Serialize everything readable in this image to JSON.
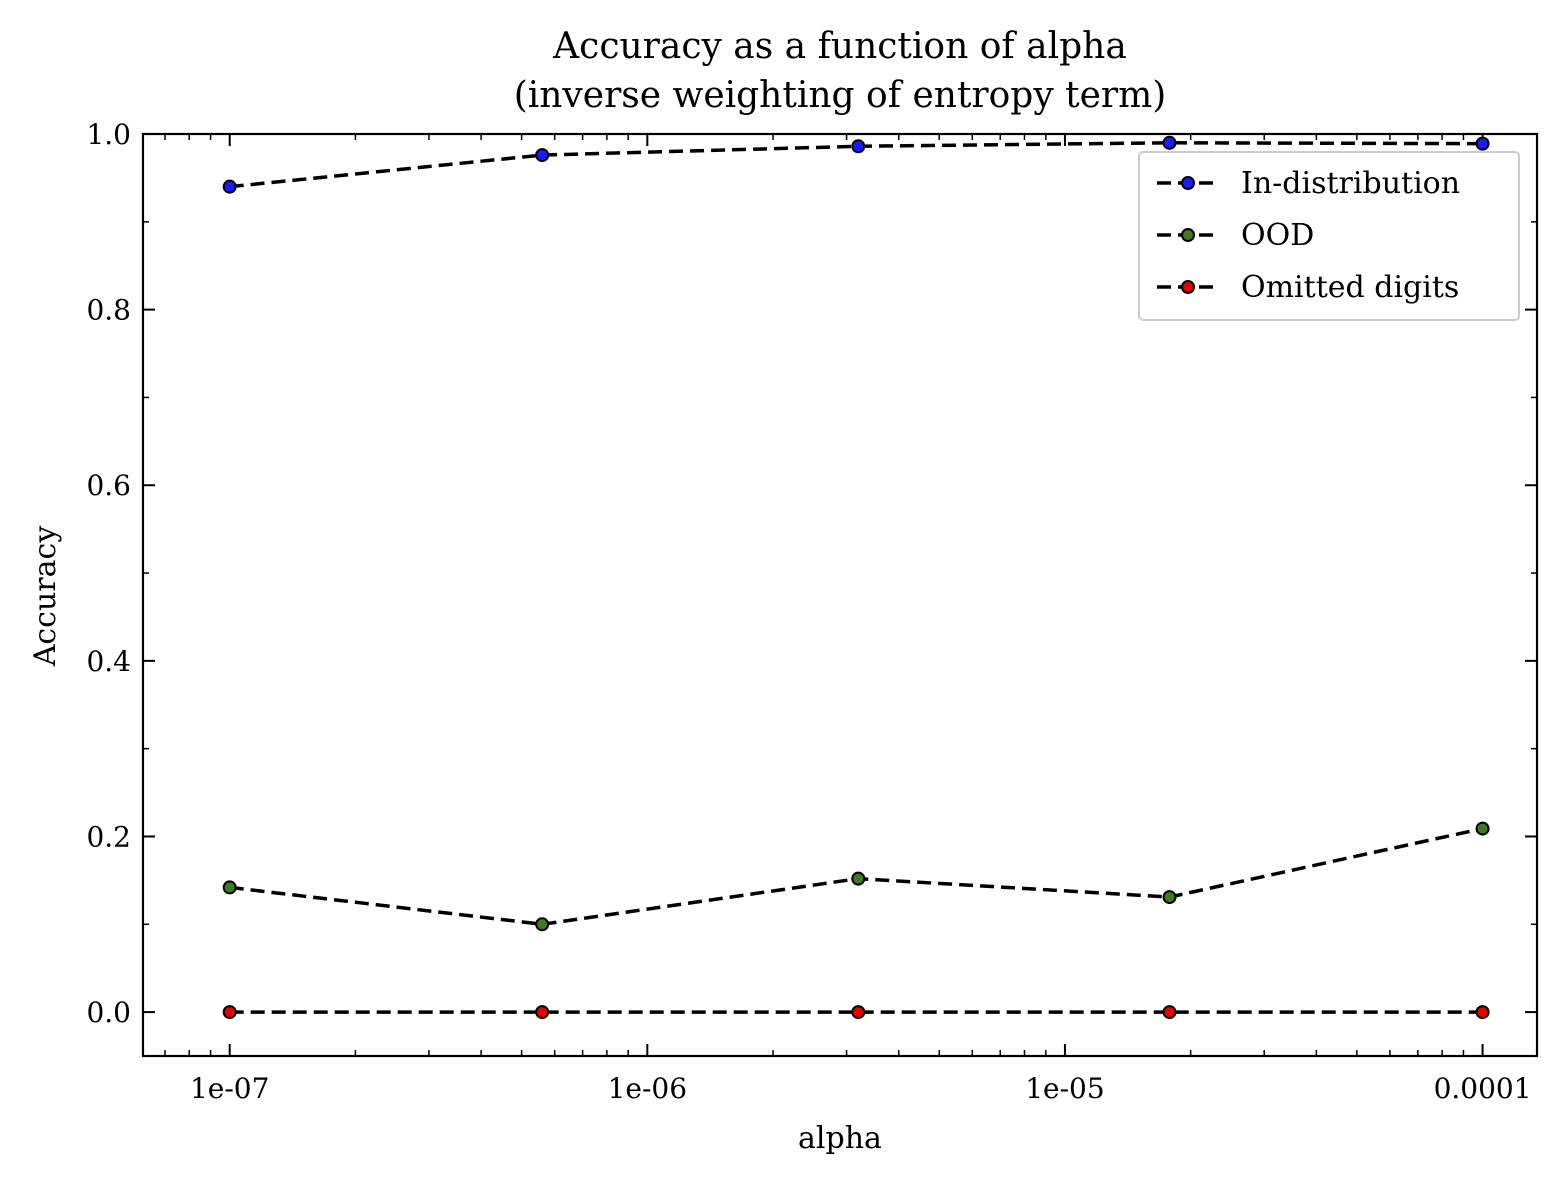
{
  "chart_data": {
    "type": "line",
    "title": [
      "Accuracy as a function of alpha",
      "(inverse weighting of entropy term)"
    ],
    "xlabel": "alpha",
    "ylabel": "Accuracy",
    "xscale": "log",
    "xlim": [
      6.2e-08,
      0.000135
    ],
    "ylim": [
      -0.05,
      1.0
    ],
    "xticks": [
      {
        "value": 1e-07,
        "label": "1e-07"
      },
      {
        "value": 1e-06,
        "label": "1e-06"
      },
      {
        "value": 1e-05,
        "label": "1e-05"
      },
      {
        "value": 0.0001,
        "label": "0.0001"
      }
    ],
    "yticks": [
      {
        "value": 0.0,
        "label": "0.0"
      },
      {
        "value": 0.2,
        "label": "0.2"
      },
      {
        "value": 0.4,
        "label": "0.4"
      },
      {
        "value": 0.6,
        "label": "0.6"
      },
      {
        "value": 0.8,
        "label": "0.8"
      },
      {
        "value": 1.0,
        "label": "1.0"
      }
    ],
    "x": [
      1e-07,
      5.6e-07,
      3.2e-06,
      1.78e-05,
      0.0001
    ],
    "series": [
      {
        "name": "In-distribution",
        "marker_color": "#1a1aff",
        "line_style": "dashed",
        "line_color": "#000000",
        "values": [
          0.94,
          0.976,
          0.986,
          0.99,
          0.989
        ]
      },
      {
        "name": "OOD",
        "marker_color": "#3d7a22",
        "line_style": "dashed",
        "line_color": "#000000",
        "values": [
          0.142,
          0.1,
          0.152,
          0.131,
          0.209
        ]
      },
      {
        "name": "Omitted digits",
        "marker_color": "#e60000",
        "line_style": "dashed",
        "line_color": "#000000",
        "values": [
          0.0,
          0.0,
          0.0,
          0.0,
          0.0
        ]
      }
    ],
    "legend": {
      "position": "top-right"
    },
    "grid": false
  }
}
